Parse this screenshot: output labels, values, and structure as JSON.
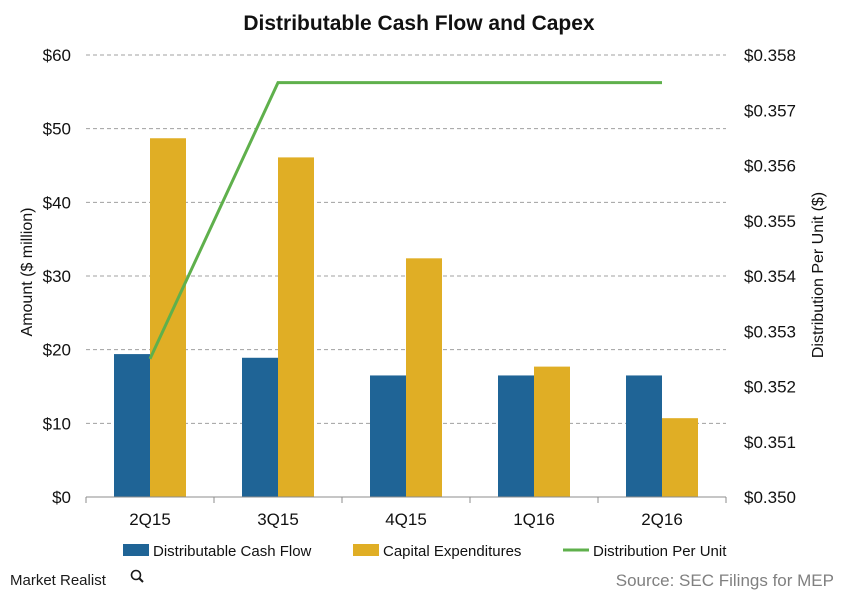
{
  "chart_data": {
    "type": "bar",
    "title": "Distributable  Cash Flow and Capex",
    "categories": [
      "2Q15",
      "3Q15",
      "4Q15",
      "1Q16",
      "2Q16"
    ],
    "series": [
      {
        "name": "Distributable Cash Flow",
        "axis": "left",
        "kind": "bar",
        "color": "#1f6496",
        "values": [
          19.4,
          18.9,
          16.5,
          16.5,
          16.5
        ]
      },
      {
        "name": "Capital Expenditures",
        "axis": "left",
        "kind": "bar",
        "color": "#e0ae25",
        "values": [
          48.7,
          46.1,
          32.4,
          17.7,
          10.7
        ]
      },
      {
        "name": "Distribution Per Unit",
        "axis": "right",
        "kind": "line",
        "color": "#5fb04c",
        "values": [
          0.3525,
          0.3575,
          0.3575,
          0.3575,
          0.3575
        ]
      }
    ],
    "ylabel": "Amount ($ million)",
    "ylim": [
      0,
      60
    ],
    "yticks": [
      0,
      10,
      20,
      30,
      40,
      50,
      60
    ],
    "ytick_labels": [
      "$0",
      "$10",
      "$20",
      "$30",
      "$40",
      "$50",
      "$60"
    ],
    "y2label": "Distribution Per Unit ($)",
    "y2lim": [
      0.35,
      0.358
    ],
    "y2ticks": [
      0.35,
      0.351,
      0.352,
      0.353,
      0.354,
      0.355,
      0.356,
      0.357,
      0.358
    ],
    "y2tick_labels": [
      "$0.350",
      "$0.351",
      "$0.352",
      "$0.353",
      "$0.354",
      "$0.355",
      "$0.356",
      "$0.357",
      "$0.358"
    ],
    "grid": true,
    "grid_style": "dashed",
    "legend_position": "bottom"
  },
  "footer": {
    "brand": "Market Realist",
    "source": "Source: SEC Filings for MEP"
  },
  "colors": {
    "grid": "#a0a0a0",
    "axis": "#8c8c8c"
  },
  "icons": {
    "brand_icon": "magnifier-icon"
  }
}
